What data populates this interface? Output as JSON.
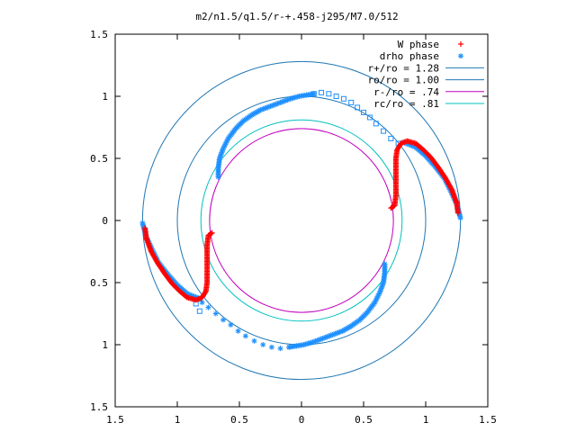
{
  "chart_data": {
    "type": "scatter",
    "title": "m2/n1.5/q1.5/r-+.458-j295/M7.0/512",
    "xlabel": "",
    "ylabel": "",
    "xlim": [
      -1.5,
      1.5
    ],
    "ylim": [
      -1.5,
      1.5
    ],
    "xticks": [
      -1.5,
      -1,
      -0.5,
      0,
      0.5,
      1,
      1.5
    ],
    "yticks": [
      -1.5,
      -1,
      -0.5,
      0,
      0.5,
      1,
      1.5
    ],
    "x_tick_labels": [
      "1.5",
      "1",
      "0.5",
      "0",
      "0.5",
      "1",
      "1.5"
    ],
    "y_tick_labels": [
      "1.5",
      "1",
      "0.5",
      "0",
      "0.5",
      "1",
      "1.5"
    ],
    "grid": false,
    "legend_position": "top-right",
    "series": [
      {
        "name": "W phase",
        "marker": "plus",
        "color": "#ff0000",
        "segments": [
          [
            [
              0.72,
              0.1
            ],
            [
              0.75,
              0.12
            ],
            [
              0.76,
              0.2
            ],
            [
              0.76,
              0.3
            ],
            [
              0.76,
              0.4
            ],
            [
              0.76,
              0.5
            ],
            [
              0.77,
              0.57
            ],
            [
              0.8,
              0.62
            ],
            [
              0.85,
              0.64
            ],
            [
              0.92,
              0.62
            ],
            [
              0.98,
              0.57
            ],
            [
              1.04,
              0.51
            ],
            [
              1.1,
              0.43
            ],
            [
              1.16,
              0.34
            ],
            [
              1.21,
              0.25
            ],
            [
              1.25,
              0.14
            ],
            [
              1.26,
              0.06
            ]
          ],
          [
            [
              -0.72,
              -0.1
            ],
            [
              -0.75,
              -0.12
            ],
            [
              -0.76,
              -0.2
            ],
            [
              -0.76,
              -0.3
            ],
            [
              -0.76,
              -0.4
            ],
            [
              -0.76,
              -0.5
            ],
            [
              -0.77,
              -0.57
            ],
            [
              -0.8,
              -0.62
            ],
            [
              -0.85,
              -0.64
            ],
            [
              -0.92,
              -0.62
            ],
            [
              -0.98,
              -0.57
            ],
            [
              -1.04,
              -0.51
            ],
            [
              -1.1,
              -0.43
            ],
            [
              -1.16,
              -0.34
            ],
            [
              -1.21,
              -0.25
            ],
            [
              -1.25,
              -0.14
            ],
            [
              -1.26,
              -0.06
            ]
          ]
        ]
      },
      {
        "name": "drho phase",
        "marker": "star",
        "color": "#1e90ff",
        "segments": [
          [
            [
              -0.67,
              0.35
            ],
            [
              -0.67,
              0.42
            ],
            [
              -0.66,
              0.5
            ],
            [
              -0.63,
              0.58
            ],
            [
              -0.59,
              0.66
            ],
            [
              -0.53,
              0.74
            ],
            [
              -0.47,
              0.8
            ],
            [
              -0.4,
              0.85
            ],
            [
              -0.33,
              0.89
            ],
            [
              -0.25,
              0.92
            ],
            [
              -0.17,
              0.95
            ],
            [
              -0.09,
              0.98
            ],
            [
              -0.02,
              1.0
            ],
            [
              0.04,
              1.01
            ],
            [
              0.1,
              1.02
            ]
          ],
          [
            [
              0.82,
              0.63
            ],
            [
              0.92,
              0.59
            ],
            [
              1.0,
              0.52
            ],
            [
              1.08,
              0.43
            ],
            [
              1.15,
              0.34
            ],
            [
              1.2,
              0.24
            ],
            [
              1.25,
              0.13
            ],
            [
              1.28,
              0.02
            ]
          ],
          [
            [
              0.67,
              -0.35
            ],
            [
              0.67,
              -0.42
            ],
            [
              0.66,
              -0.5
            ],
            [
              0.63,
              -0.58
            ],
            [
              0.59,
              -0.66
            ],
            [
              0.53,
              -0.74
            ],
            [
              0.47,
              -0.8
            ],
            [
              0.4,
              -0.85
            ],
            [
              0.33,
              -0.89
            ],
            [
              0.25,
              -0.92
            ],
            [
              0.17,
              -0.95
            ],
            [
              0.09,
              -0.98
            ],
            [
              0.02,
              -1.0
            ],
            [
              -0.04,
              -1.01
            ],
            [
              -0.1,
              -1.02
            ]
          ],
          [
            [
              -1.28,
              -0.02
            ],
            [
              -1.25,
              -0.13
            ],
            [
              -1.2,
              -0.24
            ],
            [
              -1.15,
              -0.34
            ],
            [
              -1.08,
              -0.43
            ],
            [
              -1.0,
              -0.52
            ],
            [
              -0.92,
              -0.59
            ],
            [
              -0.82,
              -0.63
            ]
          ]
        ]
      },
      {
        "name": "r+/ro = 1.28",
        "marker": "line",
        "color": "#1f77b4",
        "circle_radius": 1.28
      },
      {
        "name": "ro/ro = 1.00",
        "marker": "line",
        "color": "#1f77b4",
        "circle_radius": 1.0
      },
      {
        "name": "r-/ro =  .74",
        "marker": "line",
        "color": "#c000c0",
        "circle_radius": 0.74
      },
      {
        "name": "rc/ro =  .81",
        "marker": "line",
        "color": "#00c0c0",
        "circle_radius": 0.81
      }
    ],
    "extra_open_squares": [
      [
        0.1,
        1.02
      ],
      [
        0.16,
        1.03
      ],
      [
        0.22,
        1.02
      ],
      [
        0.28,
        1.0
      ],
      [
        0.34,
        0.98
      ],
      [
        0.4,
        0.95
      ],
      [
        0.45,
        0.91
      ],
      [
        0.5,
        0.87
      ],
      [
        0.55,
        0.83
      ],
      [
        0.6,
        0.78
      ],
      [
        0.66,
        0.72
      ],
      [
        0.72,
        0.66
      ],
      [
        0.78,
        0.62
      ],
      [
        -0.82,
        -0.63
      ],
      [
        -0.85,
        -0.67
      ],
      [
        -0.82,
        -0.73
      ]
    ],
    "extra_stars": [
      [
        -0.1,
        -1.02
      ],
      [
        -0.17,
        -1.03
      ],
      [
        -0.24,
        -1.02
      ],
      [
        -0.31,
        -1.0
      ],
      [
        -0.38,
        -0.97
      ],
      [
        -0.45,
        -0.93
      ],
      [
        -0.51,
        -0.89
      ],
      [
        -0.57,
        -0.84
      ],
      [
        -0.63,
        -0.8
      ],
      [
        -0.69,
        -0.75
      ],
      [
        -0.75,
        -0.7
      ],
      [
        -0.8,
        -0.66
      ]
    ]
  }
}
